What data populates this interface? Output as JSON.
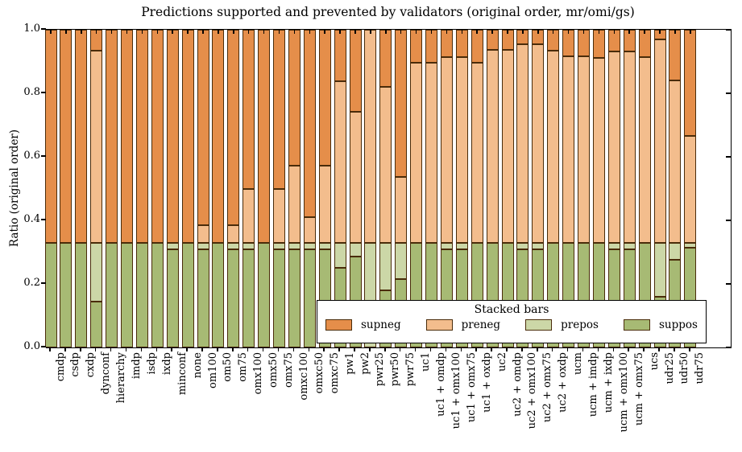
{
  "title": "Predictions supported and prevented by validators (original order, mr/omi/gs)",
  "y_axis": {
    "label": "Ratio (original order)",
    "tick_labels": [
      "0.0",
      "0.2",
      "0.4",
      "0.6",
      "0.8",
      "1.0"
    ],
    "tick_values": [
      0.0,
      0.2,
      0.4,
      0.6,
      0.8,
      1.0
    ]
  },
  "legend": {
    "title": "Stacked bars",
    "entries": [
      {
        "label": "supneg",
        "color": "#e58e4a"
      },
      {
        "label": "preneg",
        "color": "#f3bd8d"
      },
      {
        "label": "prepos",
        "color": "#ccd7a7"
      },
      {
        "label": "suppos",
        "color": "#a7ba74"
      }
    ]
  },
  "colors": {
    "supneg": "#e58e4a",
    "preneg": "#f3bd8d",
    "prepos": "#ccd7a7",
    "suppos": "#a7ba74",
    "bar_edge": "#4a2c0a",
    "axis": "#000000"
  },
  "chart_data": {
    "type": "bar",
    "stacked": true,
    "grid": false,
    "legend_position": "lower right inside",
    "title": "Predictions supported and prevented by validators (original order, mr/omi/gs)",
    "xlabel": "",
    "ylabel": "Ratio (original order)",
    "ylim": [
      0.0,
      1.0
    ],
    "categories": [
      "cmdp",
      "csdp",
      "cxdp",
      "dynconf",
      "hierarchy",
      "imdp",
      "isdp",
      "ixdp",
      "minconf",
      "none",
      "om100",
      "om50",
      "om75",
      "omx100",
      "omx50",
      "omx75",
      "omxc100",
      "omxc50",
      "omxc75",
      "pw1",
      "pw2",
      "pwr25",
      "pwr50",
      "pwr75",
      "uc1",
      "uc1 + omdp",
      "uc1 + omx100",
      "uc1 + omx75",
      "uc1 + oxdp",
      "uc2",
      "uc2 + omdp",
      "uc2 + omx100",
      "uc2 + omx75",
      "uc2 + oxdp",
      "ucm",
      "ucm + imdp",
      "ucm + ixdp",
      "ucm + omx100",
      "ucm + omx75",
      "ucs",
      "udr25",
      "udr50",
      "udr75"
    ],
    "series": [
      {
        "name": "suppos",
        "color": "#a7ba74",
        "values": [
          0.33,
          0.33,
          0.33,
          0.145,
          0.33,
          0.33,
          0.33,
          0.33,
          0.31,
          0.33,
          0.31,
          0.33,
          0.31,
          0.31,
          0.33,
          0.31,
          0.31,
          0.31,
          0.31,
          0.25,
          0.287,
          0.0,
          0.18,
          0.215,
          0.33,
          0.33,
          0.31,
          0.31,
          0.33,
          0.33,
          0.33,
          0.31,
          0.31,
          0.33,
          0.33,
          0.33,
          0.33,
          0.31,
          0.31,
          0.33,
          0.16,
          0.275,
          0.313
        ]
      },
      {
        "name": "prepos",
        "color": "#ccd7a7",
        "values": [
          0,
          0,
          0,
          0.185,
          0,
          0,
          0,
          0,
          0.02,
          0,
          0.02,
          0,
          0.02,
          0.02,
          0,
          0.02,
          0.02,
          0.02,
          0.02,
          0.08,
          0.043,
          0.33,
          0.15,
          0.115,
          0,
          0,
          0.02,
          0.02,
          0,
          0,
          0,
          0.02,
          0.02,
          0,
          0,
          0,
          0,
          0.02,
          0.02,
          0,
          0.17,
          0.055,
          0.017
        ]
      },
      {
        "name": "preneg",
        "color": "#f3bd8d",
        "values": [
          0,
          0,
          0,
          0.603,
          0,
          0,
          0,
          0,
          0,
          0,
          0.055,
          0,
          0.055,
          0.17,
          0,
          0.17,
          0.243,
          0.08,
          0.243,
          0.508,
          0.413,
          0.67,
          0.49,
          0.206,
          0.565,
          0.565,
          0.585,
          0.585,
          0.565,
          0.606,
          0.606,
          0.624,
          0.624,
          0.603,
          0.586,
          0.586,
          0.582,
          0.602,
          0.602,
          0.585,
          0.64,
          0.51,
          0.336
        ]
      },
      {
        "name": "supneg",
        "color": "#e58e4a",
        "values": [
          0.67,
          0.67,
          0.67,
          0.067,
          0.67,
          0.67,
          0.67,
          0.67,
          0.67,
          0.67,
          0.615,
          0.67,
          0.615,
          0.5,
          0.67,
          0.5,
          0.427,
          0.59,
          0.427,
          0.162,
          0.257,
          0.0,
          0.18,
          0.464,
          0.105,
          0.105,
          0.085,
          0.085,
          0.105,
          0.064,
          0.064,
          0.046,
          0.046,
          0.067,
          0.084,
          0.084,
          0.088,
          0.068,
          0.068,
          0.085,
          0.03,
          0.16,
          0.334
        ]
      }
    ]
  }
}
